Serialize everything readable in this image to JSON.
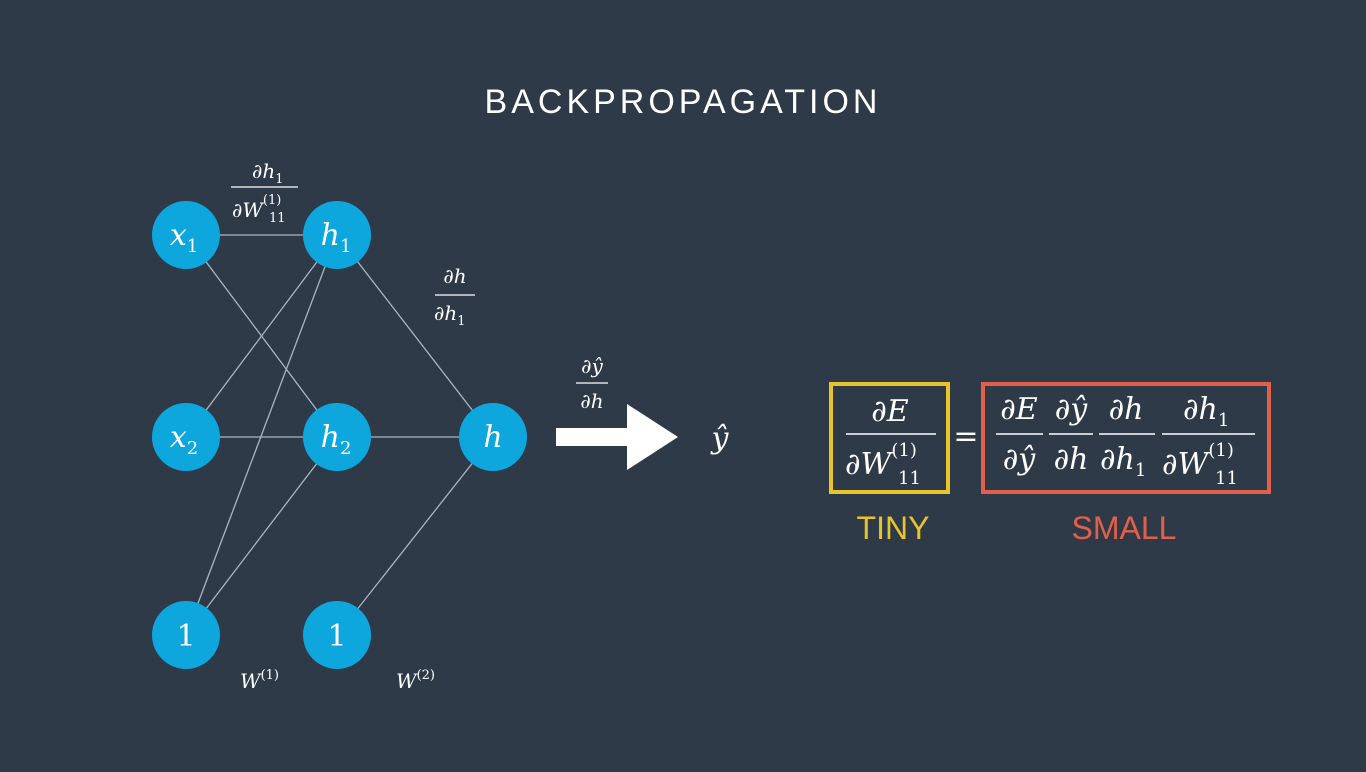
{
  "title": "BACKPROPAGATION",
  "colors": {
    "background": "#2f3a48",
    "node": "#0ea7dd",
    "edge": "#a8b6c3",
    "tiny": "#e8c32a",
    "small": "#e2604a"
  },
  "nodes": {
    "x1": {
      "base": "x",
      "sub": "1"
    },
    "x2": {
      "base": "x",
      "sub": "2"
    },
    "bias1": {
      "base": "1",
      "sub": ""
    },
    "h1": {
      "base": "h",
      "sub": "1"
    },
    "h2": {
      "base": "h",
      "sub": "2"
    },
    "bias2": {
      "base": "1",
      "sub": ""
    },
    "h": {
      "base": "h",
      "sub": ""
    }
  },
  "weights": {
    "w1": {
      "base": "W",
      "sup": "(1)"
    },
    "w2": {
      "base": "W",
      "sup": "(2)"
    }
  },
  "annotations": {
    "dh1_dw11": {
      "num": "∂h",
      "num_sub": "1",
      "den": "∂W",
      "den_sub": "11",
      "den_sup": "(1)"
    },
    "dh_dh1": {
      "num": "∂h",
      "den": "∂h",
      "den_sub": "1"
    },
    "dyhat_dh": {
      "num": "∂ŷ",
      "den": "∂h"
    }
  },
  "output_label": "ŷ",
  "equation": {
    "lhs": {
      "num": "∂E",
      "den": "∂W",
      "den_sub": "11",
      "den_sup": "(1)"
    },
    "equals": "=",
    "rhs": [
      {
        "num": "∂E",
        "den": "∂ŷ"
      },
      {
        "num": "∂ŷ",
        "den": "∂h"
      },
      {
        "num": "∂h",
        "den": "∂h",
        "den_sub": "1"
      },
      {
        "num": "∂h",
        "num_sub": "1",
        "den": "∂W",
        "den_sub": "11",
        "den_sup": "(1)"
      }
    ]
  },
  "captions": {
    "tiny": "TINY",
    "small": "SMALL"
  }
}
